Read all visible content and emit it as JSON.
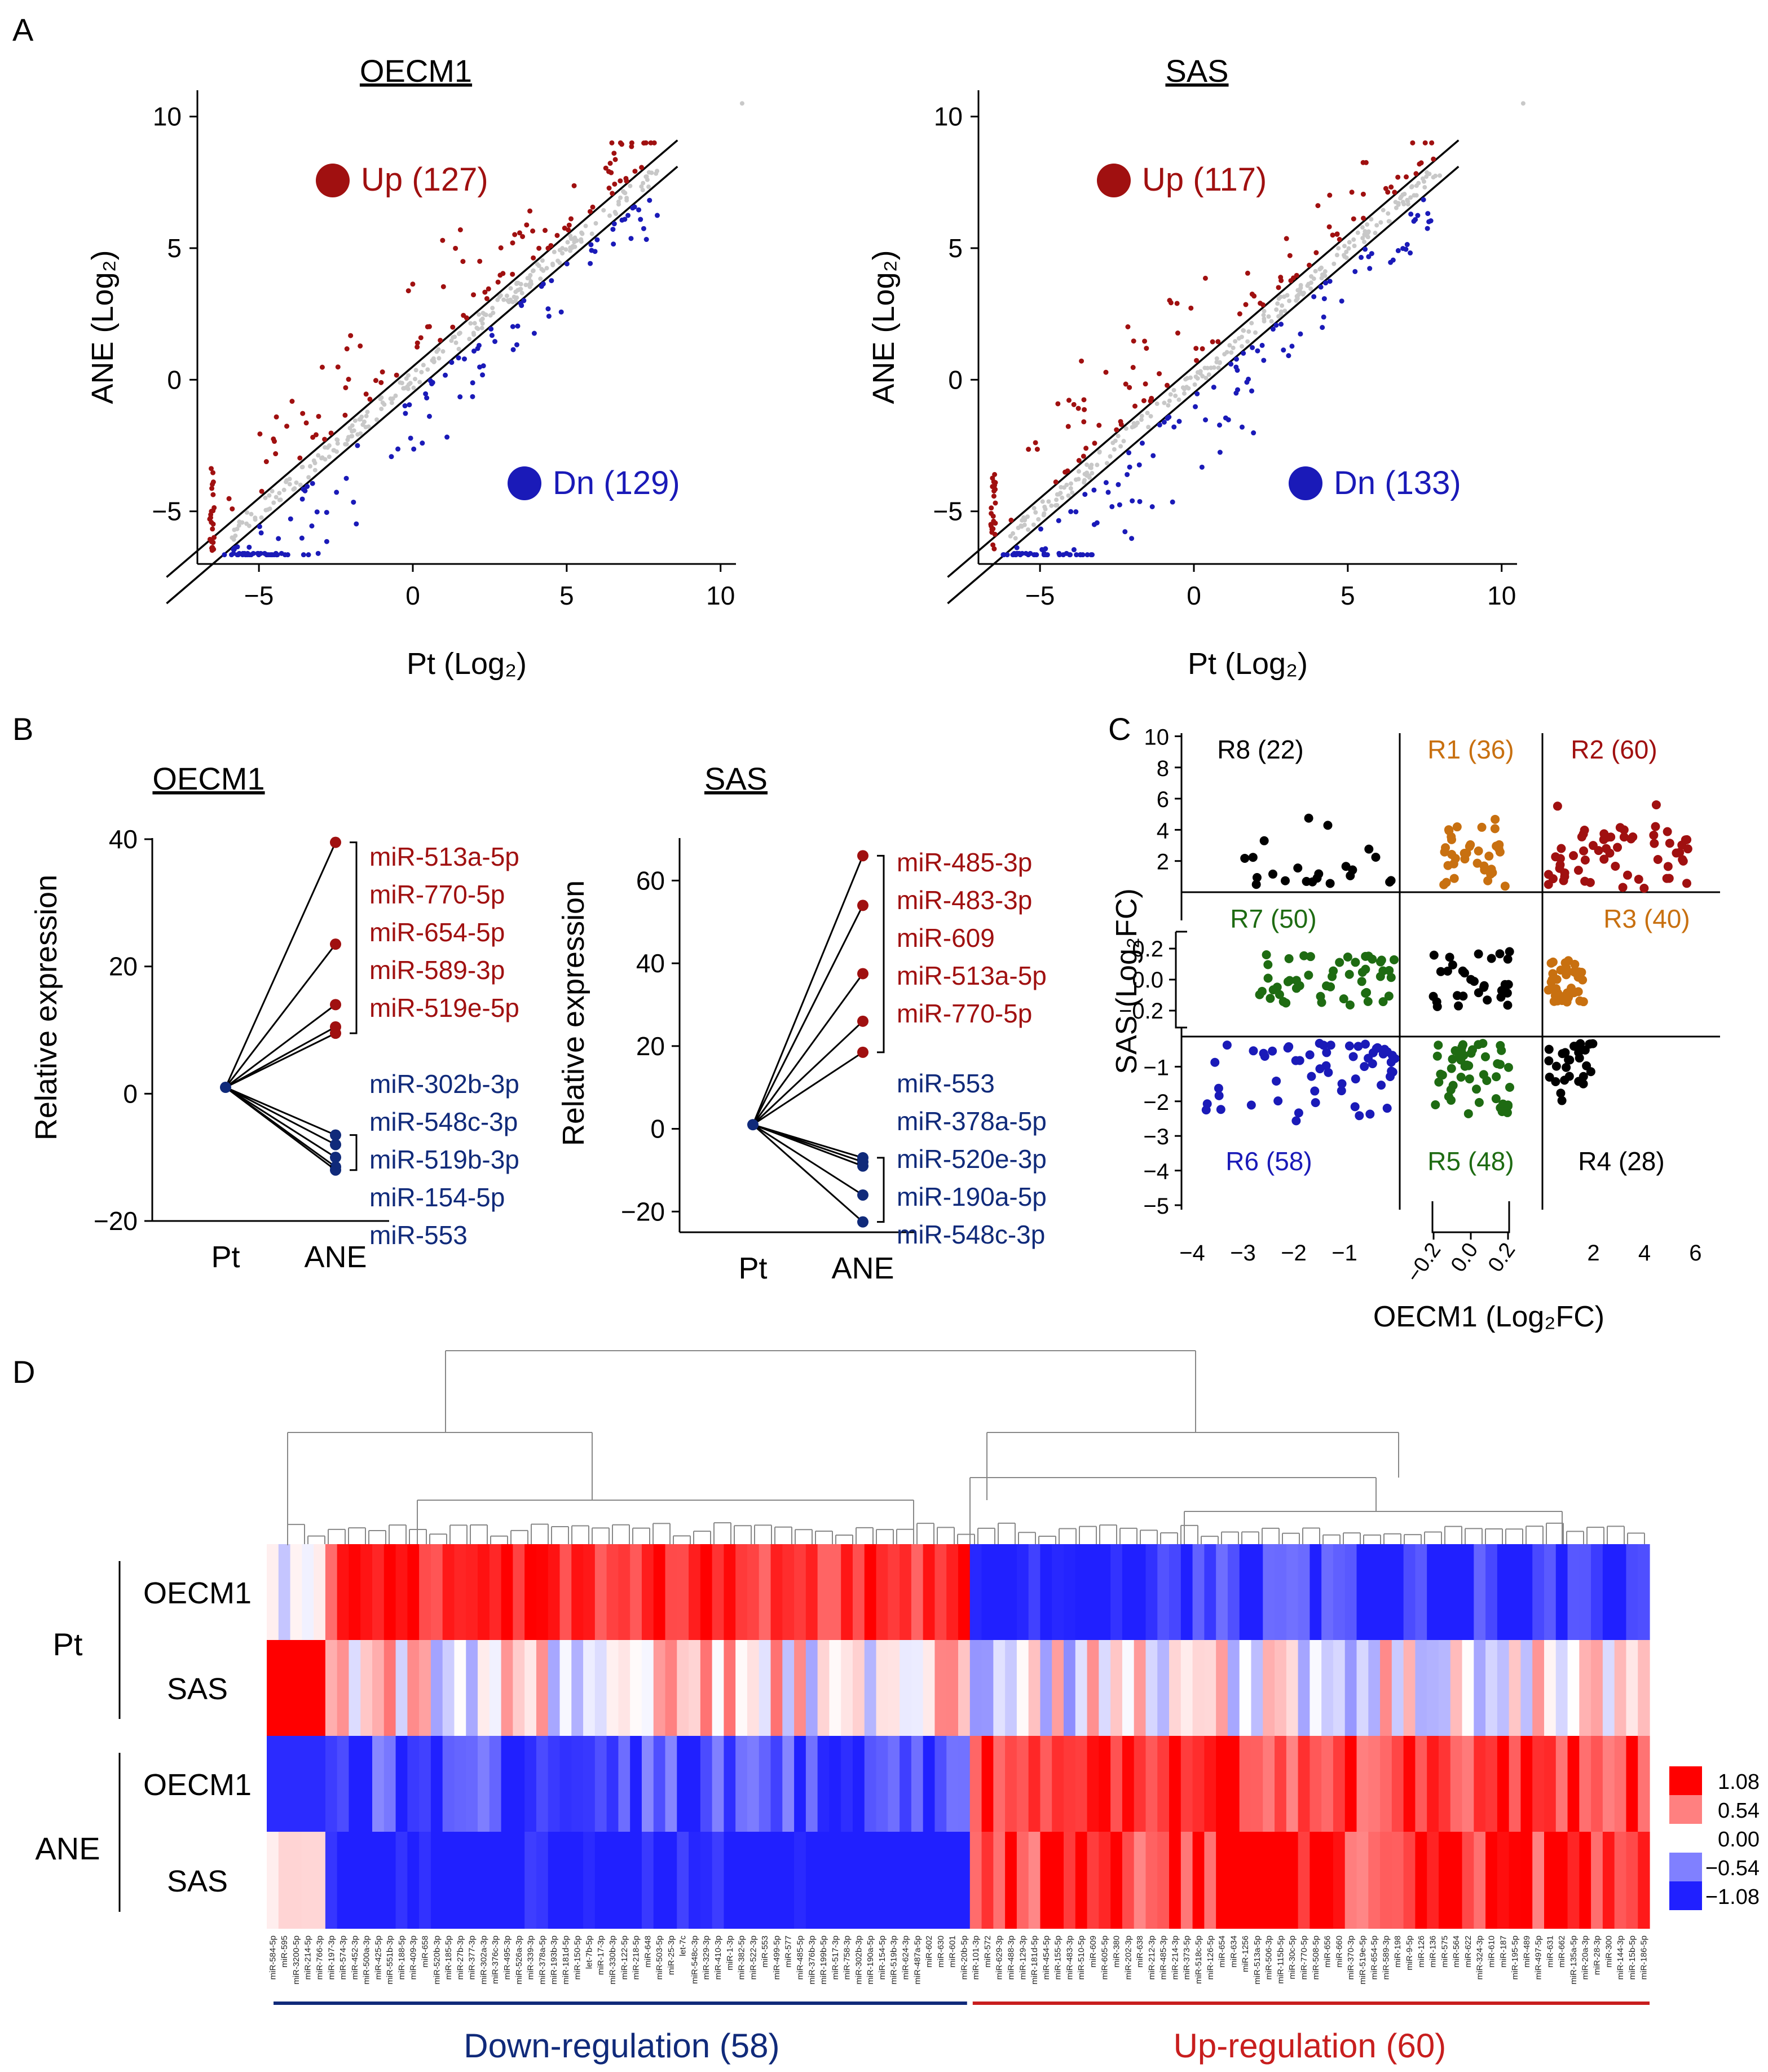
{
  "colors": {
    "up": "#a01010",
    "down": "#1a1ab8",
    "ns": "#c8c8c8",
    "green": "#1e6b12",
    "orange": "#c87010",
    "black": "#000000",
    "navy": "#102a7a",
    "red_bar": "#c81e1e",
    "heat_pos": "#ff0000",
    "heat_neg": "#2020ff"
  },
  "panels": {
    "A": "A",
    "B": "B",
    "C": "C",
    "D": "D"
  },
  "chart_data": [
    {
      "id": "A1",
      "type": "scatter",
      "title": "OECM1",
      "xlabel": "Pt (Log₂)",
      "ylabel": "ANE (Log₂)",
      "xlim": [
        -7,
        10.5
      ],
      "ylim": [
        -7,
        11
      ],
      "xticks": [
        -5,
        0,
        5,
        10
      ],
      "yticks": [
        -5,
        0,
        5,
        10
      ],
      "xtick_labels": [
        "−5",
        "0",
        "5",
        "10"
      ],
      "ytick_labels": [
        "−5",
        "0",
        "5",
        "10"
      ],
      "legend": [
        {
          "label": "Up (127)",
          "color_key": "up",
          "position": "top-left"
        },
        {
          "label": "Dn (129)",
          "color_key": "down",
          "position": "bottom-right"
        }
      ],
      "counts": {
        "up": 127,
        "down": 129
      },
      "fold_lines": "y = x ± 0.5"
    },
    {
      "id": "A2",
      "type": "scatter",
      "title": "SAS",
      "xlabel": "Pt (Log₂)",
      "ylabel": "ANE (Log₂)",
      "xlim": [
        -7,
        10.5
      ],
      "ylim": [
        -7,
        11
      ],
      "xticks": [
        -5,
        0,
        5,
        10
      ],
      "yticks": [
        -5,
        0,
        5,
        10
      ],
      "xtick_labels": [
        "−5",
        "0",
        "5",
        "10"
      ],
      "ytick_labels": [
        "−5",
        "0",
        "5",
        "10"
      ],
      "legend": [
        {
          "label": "Up (117)",
          "color_key": "up",
          "position": "top-left"
        },
        {
          "label": "Dn (133)",
          "color_key": "down",
          "position": "bottom-right"
        }
      ],
      "counts": {
        "up": 117,
        "down": 133
      },
      "fold_lines": "y = x ± 0.5"
    },
    {
      "id": "B1",
      "type": "line",
      "title": "OECM1",
      "ylabel": "Relative expression",
      "categories": [
        "Pt",
        "ANE"
      ],
      "ylim": [
        -20,
        40
      ],
      "yticks": [
        -20,
        0,
        20,
        40
      ],
      "ytick_labels": [
        "−20",
        "0",
        "20",
        "40"
      ],
      "series_up": [
        {
          "name": "miR-513a-5p",
          "values": [
            1,
            39.5
          ]
        },
        {
          "name": "miR-770-5p",
          "values": [
            1,
            23.5
          ]
        },
        {
          "name": "miR-654-5p",
          "values": [
            1,
            14
          ]
        },
        {
          "name": "miR-589-3p",
          "values": [
            1,
            10.5
          ]
        },
        {
          "name": "miR-519e-5p",
          "values": [
            1,
            9.5
          ]
        }
      ],
      "series_down": [
        {
          "name": "miR-302b-3p",
          "values": [
            1,
            -6.5
          ]
        },
        {
          "name": "miR-548c-3p",
          "values": [
            1,
            -8
          ]
        },
        {
          "name": "miR-519b-3p",
          "values": [
            1,
            -10
          ]
        },
        {
          "name": "miR-154-5p",
          "values": [
            1,
            -11.5
          ]
        },
        {
          "name": "miR-553",
          "values": [
            1,
            -12
          ]
        }
      ]
    },
    {
      "id": "B2",
      "type": "line",
      "title": "SAS",
      "ylabel": "Relative expression",
      "categories": [
        "Pt",
        "ANE"
      ],
      "ylim": [
        -25,
        70
      ],
      "yticks": [
        -20,
        0,
        20,
        40,
        60
      ],
      "ytick_labels": [
        "−20",
        "0",
        "20",
        "40",
        "60"
      ],
      "series_up": [
        {
          "name": "miR-485-3p",
          "values": [
            1,
            66
          ]
        },
        {
          "name": "miR-483-3p",
          "values": [
            1,
            54
          ]
        },
        {
          "name": "miR-609",
          "values": [
            1,
            37.5
          ]
        },
        {
          "name": "miR-513a-5p",
          "values": [
            1,
            26
          ]
        },
        {
          "name": "miR-770-5p",
          "values": [
            1,
            18.5
          ]
        }
      ],
      "series_down": [
        {
          "name": "miR-553",
          "values": [
            1,
            -7
          ]
        },
        {
          "name": "miR-378a-5p",
          "values": [
            1,
            -8
          ]
        },
        {
          "name": "miR-520e-3p",
          "values": [
            1,
            -9
          ]
        },
        {
          "name": "miR-190a-5p",
          "values": [
            1,
            -16
          ]
        },
        {
          "name": "miR-548c-3p",
          "values": [
            1,
            -22.5
          ]
        }
      ]
    },
    {
      "id": "C",
      "type": "scatter",
      "xlabel": "OECM1 (Log₂FC)",
      "ylabel": "SAS (Log₂FC)",
      "col_tick_labels": {
        "left": [
          "−4",
          "−3",
          "−2",
          "−1"
        ],
        "mid": [
          "−0.2",
          "0.0",
          "0.2"
        ],
        "right": [
          "2",
          "4",
          "6"
        ]
      },
      "row_tick_labels": {
        "top": [
          "10",
          "8",
          "6",
          "4",
          "2"
        ],
        "mid": [
          "0.2",
          "0.0",
          "−0.2"
        ],
        "bottom": [
          "−1",
          "−2",
          "−3",
          "−4",
          "−5"
        ]
      },
      "regions": [
        {
          "label": "R8 (22)",
          "count": 22,
          "color_key": "black"
        },
        {
          "label": "R1 (36)",
          "count": 36,
          "color_key": "orange"
        },
        {
          "label": "R2 (60)",
          "count": 60,
          "color_key": "up"
        },
        {
          "label": "R7 (50)",
          "count": 50,
          "color_key": "green"
        },
        {
          "label": "R3 (40)",
          "count": 40,
          "color_key": "orange"
        },
        {
          "label": "R6 (58)",
          "count": 58,
          "color_key": "down"
        },
        {
          "label": "R5 (48)",
          "count": 48,
          "color_key": "green"
        },
        {
          "label": "R4 (28)",
          "count": 28,
          "color_key": "black"
        }
      ]
    },
    {
      "id": "D",
      "type": "heatmap",
      "row_groups": [
        {
          "label": "Pt",
          "rows": [
            "OECM1",
            "SAS"
          ]
        },
        {
          "label": "ANE",
          "rows": [
            "OECM1",
            "SAS"
          ]
        }
      ],
      "colorbar": [
        {
          "value": 1.08,
          "label": "1.08"
        },
        {
          "value": 0.54,
          "label": "0.54"
        },
        {
          "value": 0.0,
          "label": "0.00"
        },
        {
          "value": -0.54,
          "label": "−0.54"
        },
        {
          "value": -1.08,
          "label": "−1.08"
        }
      ],
      "groups": [
        {
          "label": "Down-regulation (58)",
          "count": 58
        },
        {
          "label": "Up-regulation (60)",
          "count": 60
        }
      ],
      "columns": [
        "miR-584-5p",
        "miR-595",
        "miR-3200-5p",
        "miR-214-5p",
        "miR-766-3p",
        "miR-197-3p",
        "miR-574-3p",
        "miR-452-3p",
        "miR-500a-3p",
        "miR-425-5p",
        "miR-551b-3p",
        "miR-188-5p",
        "miR-409-3p",
        "miR-658",
        "miR-520b-3p",
        "miR-185-5p",
        "miR-27b-3p",
        "miR-377-3p",
        "miR-302a-3p",
        "miR-376c-3p",
        "miR-495-3p",
        "miR-526a-3p",
        "miR-339-3p",
        "miR-378a-5p",
        "miR-193b-3p",
        "miR-181d-5p",
        "miR-150-5p",
        "let-7b-5p",
        "miR-17-3p",
        "miR-330b-3p",
        "miR-122-5p",
        "miR-218-5p",
        "miR-648",
        "miR-503-5p",
        "miR-25-3p",
        "let-7c",
        "miR-548c-3p",
        "miR-329-3p",
        "miR-410-3p",
        "miR-1-3p",
        "miR-382-5p",
        "miR-522-3p",
        "miR-553",
        "miR-499-5p",
        "miR-577",
        "miR-485-5p",
        "miR-376b-3p",
        "miR-199b-5p",
        "miR-517-3p",
        "miR-758-3p",
        "miR-302b-3p",
        "miR-190a-5p",
        "miR-154-5p",
        "miR-519b-3p",
        "miR-624-3p",
        "miR-487a-5p",
        "miR-602",
        "miR-630",
        "miR-601",
        "miR-20b-5p",
        "miR-101-3p",
        "miR-572",
        "miR-629-3p",
        "miR-488-3p",
        "miR-129-3p",
        "miR-181d-5p",
        "miR-454-5p",
        "miR-155-5p",
        "miR-483-3p",
        "miR-510-5p",
        "miR-609",
        "miR-605-5p",
        "miR-380",
        "miR-202-3p",
        "miR-638",
        "miR-212-3p",
        "miR-485-3p",
        "miR-214-3p",
        "miR-373-5p",
        "miR-518c-5p",
        "miR-126-5p",
        "miR-654",
        "miR-634",
        "miR-1256",
        "miR-513a-5p",
        "miR-506-3p",
        "miR-115b-5p",
        "miR-30c-5p",
        "miR-770-5p",
        "miR-508-5p",
        "miR-656",
        "miR-660",
        "miR-370-3p",
        "miR-519e-5p",
        "miR-654-5p",
        "miR-589-3p",
        "miR-198",
        "miR-9-5p",
        "miR-126",
        "miR-136",
        "miR-575",
        "miR-564",
        "miR-622",
        "miR-324-3p",
        "miR-610",
        "miR-187",
        "miR-195-5p",
        "miR-489",
        "miR-497-5p",
        "miR-631",
        "miR-662",
        "miR-135a-5p",
        "miR-20a-3p",
        "miR-28-3p",
        "miR-300",
        "miR-144-3p",
        "miR-15b-5p",
        "miR-186-5p"
      ]
    }
  ]
}
